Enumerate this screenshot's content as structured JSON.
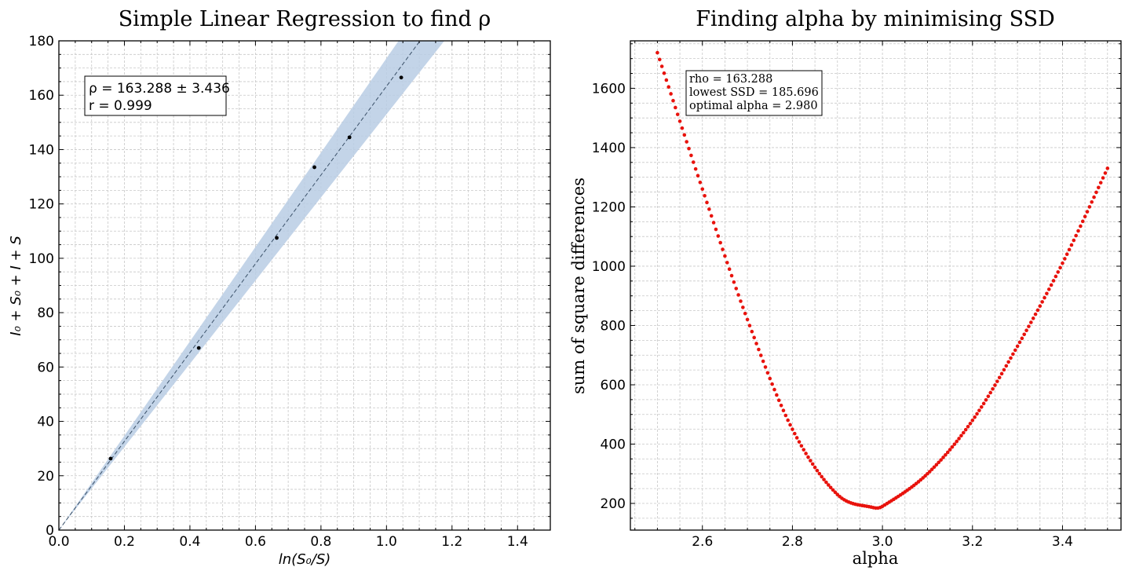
{
  "chart_data": [
    {
      "type": "scatter",
      "title": "Simple Linear Regression to find ρ",
      "xlabel": "ln(S₀/S)",
      "ylabel": "I₀ + S₀ + I + S",
      "xlim": [
        0.0,
        1.5
      ],
      "ylim": [
        0,
        180
      ],
      "x_ticks": [
        "0.0",
        "0.2",
        "0.4",
        "0.6",
        "0.8",
        "1.0",
        "1.2",
        "1.4"
      ],
      "y_ticks": [
        "0",
        "20",
        "40",
        "60",
        "80",
        "100",
        "120",
        "140",
        "160",
        "180"
      ],
      "grid": true,
      "points": [
        {
          "x": 0.158,
          "y": 26.3
        },
        {
          "x": 0.427,
          "y": 67.0
        },
        {
          "x": 0.665,
          "y": 107.5
        },
        {
          "x": 0.78,
          "y": 133.5
        },
        {
          "x": 0.887,
          "y": 144.5
        },
        {
          "x": 1.045,
          "y": 166.5
        }
      ],
      "fit": {
        "slope": 163.288,
        "slope_err": 3.436,
        "intercept": 0
      },
      "annotation": {
        "line1": "ρ = 163.288 ± 3.436",
        "line2": "r = 0.999"
      },
      "colors": {
        "points": "#000000",
        "fit_line": "#3a5068",
        "band": "#b8cde4"
      }
    },
    {
      "type": "scatter",
      "title": "Finding alpha by minimising SSD",
      "xlabel": "alpha",
      "ylabel": "sum of square differences",
      "xlim": [
        2.44,
        3.53
      ],
      "ylim": [
        110,
        1760
      ],
      "x_ticks": [
        "2.6",
        "2.8",
        "3.0",
        "3.2",
        "3.4"
      ],
      "y_ticks": [
        "200",
        "400",
        "600",
        "800",
        "1000",
        "1200",
        "1400",
        "1600"
      ],
      "grid": true,
      "series": [
        {
          "x_start": 2.5,
          "x_end": 3.5,
          "x_step": 0.005,
          "minimum_x": 2.98,
          "minimum_y": 185.696,
          "sampled": [
            [
              2.5,
              1720
            ],
            [
              2.6,
              1260
            ],
            [
              2.7,
              820
            ],
            [
              2.8,
              450
            ],
            [
              2.9,
              230
            ],
            [
              2.98,
              185.7
            ],
            [
              3.0,
              190
            ],
            [
              3.1,
              300
            ],
            [
              3.2,
              480
            ],
            [
              3.3,
              730
            ],
            [
              3.4,
              1010
            ],
            [
              3.5,
              1330
            ]
          ]
        }
      ],
      "annotation": {
        "line1": "rho = 163.288",
        "line2": "lowest SSD = 185.696",
        "line3": "optimal alpha = 2.980"
      },
      "colors": {
        "points": "#e8120c"
      }
    }
  ]
}
